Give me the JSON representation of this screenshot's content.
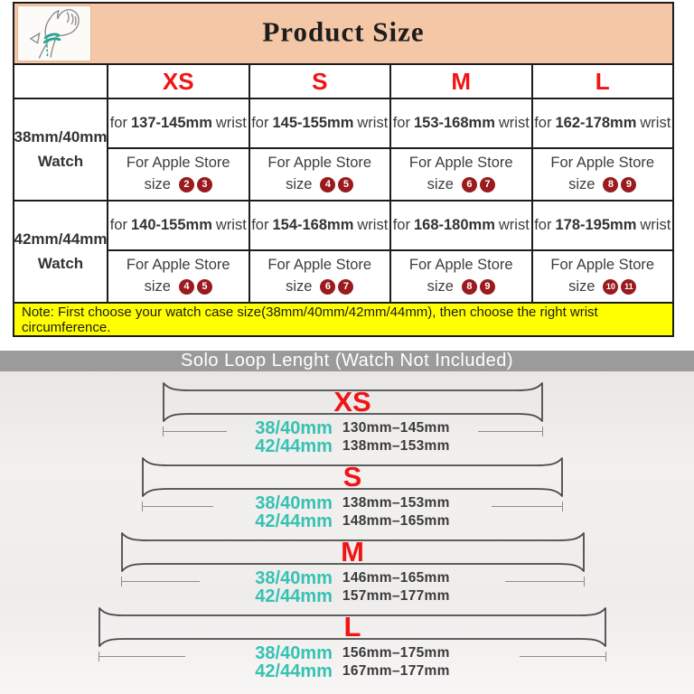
{
  "product_size_table": {
    "title": "Product Size",
    "size_columns": [
      "XS",
      "S",
      "M",
      "L"
    ],
    "labels": {
      "for": "for",
      "wrist": "wrist",
      "apple_store": "For Apple Store",
      "size": "size"
    },
    "rows": [
      {
        "watch": "38mm/40mm Watch",
        "cells": [
          {
            "wrist_range": "137-145mm",
            "store_sizes": [
              2,
              3
            ]
          },
          {
            "wrist_range": "145-155mm",
            "store_sizes": [
              4,
              5
            ]
          },
          {
            "wrist_range": "153-168mm",
            "store_sizes": [
              6,
              7
            ]
          },
          {
            "wrist_range": "162-178mm",
            "store_sizes": [
              8,
              9
            ]
          }
        ]
      },
      {
        "watch": "42mm/44mm Watch",
        "cells": [
          {
            "wrist_range": "140-155mm",
            "store_sizes": [
              4,
              5
            ]
          },
          {
            "wrist_range": "154-168mm",
            "store_sizes": [
              6,
              7
            ]
          },
          {
            "wrist_range": "168-180mm",
            "store_sizes": [
              8,
              9
            ]
          },
          {
            "wrist_range": "178-195mm",
            "store_sizes": [
              10,
              11
            ]
          }
        ]
      }
    ],
    "note": "Note: First choose your watch case size(38mm/40mm/42mm/44mm), then choose the right wrist circumference."
  },
  "solo_loop_section": {
    "banner_title": "Solo Loop Lenght (Watch Not Included)",
    "sizes": [
      {
        "label": "XS",
        "specs": [
          {
            "case_size": "38/40mm",
            "length_range": "130mm–145mm"
          },
          {
            "case_size": "42/44mm",
            "length_range": "138mm–153mm"
          }
        ]
      },
      {
        "label": "S",
        "specs": [
          {
            "case_size": "38/40mm",
            "length_range": "138mm–153mm"
          },
          {
            "case_size": "42/44mm",
            "length_range": "148mm–165mm"
          }
        ]
      },
      {
        "label": "M",
        "specs": [
          {
            "case_size": "38/40mm",
            "length_range": "146mm–165mm"
          },
          {
            "case_size": "42/44mm",
            "length_range": "157mm–177mm"
          }
        ]
      },
      {
        "label": "L",
        "specs": [
          {
            "case_size": "38/40mm",
            "length_range": "156mm–175mm"
          },
          {
            "case_size": "42/44mm",
            "length_range": "167mm–177mm"
          }
        ]
      }
    ]
  },
  "colors": {
    "header_peach": "#f4c7a6",
    "size_letter_red": "#f01414",
    "store_circle_maroon": "#9a1a1e",
    "note_yellow": "#ffff00",
    "banner_gray": "#9b9b9b",
    "case_teal": "#35c2b2",
    "table_border_black": "#1c1c1c"
  }
}
